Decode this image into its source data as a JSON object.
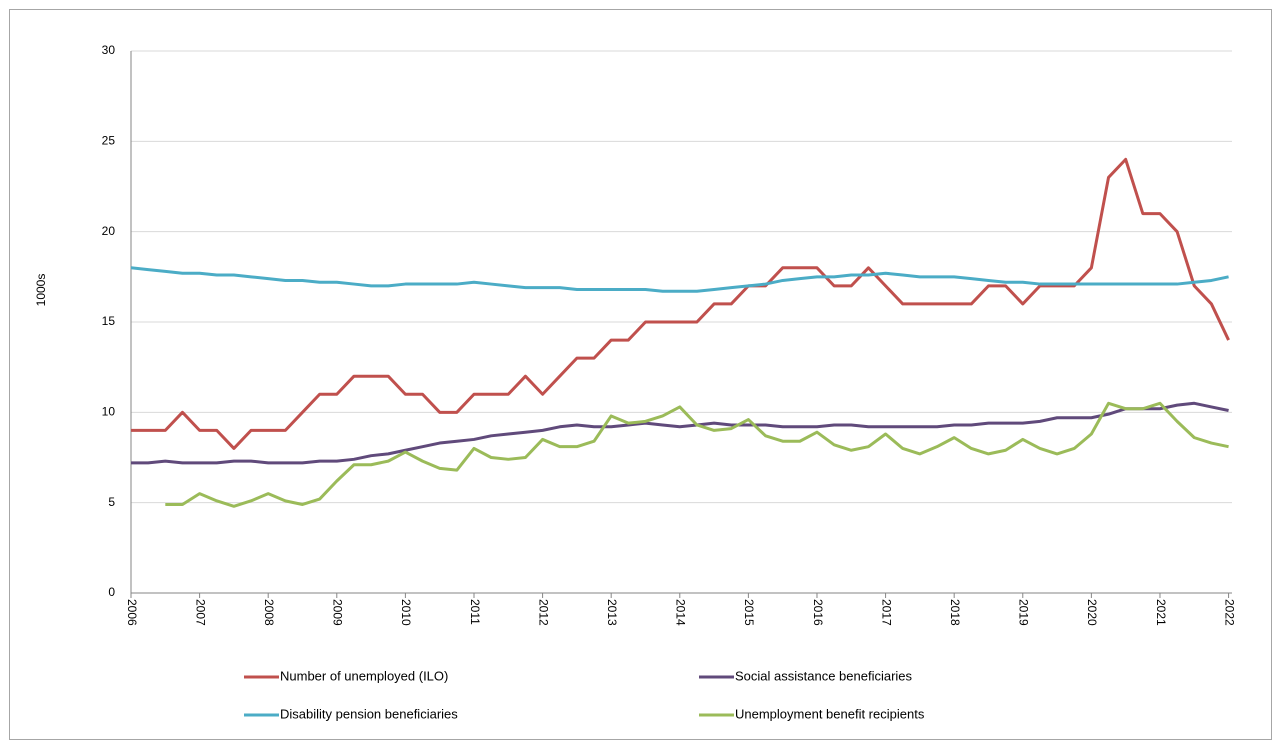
{
  "chart_data": {
    "type": "line",
    "y_label": "1000s",
    "x": [
      2006,
      2006.25,
      2006.5,
      2006.75,
      2007,
      2007.25,
      2007.5,
      2007.75,
      2008,
      2008.25,
      2008.5,
      2008.75,
      2009,
      2009.25,
      2009.5,
      2009.75,
      2010,
      2010.25,
      2010.5,
      2010.75,
      2011,
      2011.25,
      2011.5,
      2011.75,
      2012,
      2012.25,
      2012.5,
      2012.75,
      2013,
      2013.25,
      2013.5,
      2013.75,
      2014,
      2014.25,
      2014.5,
      2014.75,
      2015,
      2015.25,
      2015.5,
      2015.75,
      2016,
      2016.25,
      2016.5,
      2016.75,
      2017,
      2017.25,
      2017.5,
      2017.75,
      2018,
      2018.25,
      2018.5,
      2018.75,
      2019,
      2019.25,
      2019.5,
      2019.75,
      2020,
      2020.25,
      2020.5,
      2020.75,
      2021,
      2021.25,
      2021.5,
      2021.75,
      2022
    ],
    "series": [
      {
        "name": "Number of unemployed (ILO)",
        "color": "#c0504d",
        "values": [
          9,
          9,
          9,
          10,
          9,
          9,
          8,
          9,
          9,
          9,
          10,
          11,
          11,
          12,
          12,
          12,
          11,
          11,
          10,
          10,
          11,
          11,
          11,
          12,
          11,
          12,
          13,
          13,
          14,
          14,
          15,
          15,
          15,
          15,
          16,
          16,
          17,
          17,
          18,
          18,
          18,
          17,
          17,
          18,
          17,
          16,
          16,
          16,
          16,
          16,
          17,
          17,
          16,
          17,
          17,
          17,
          18,
          23,
          24,
          21,
          21,
          20,
          17,
          16,
          14
        ]
      },
      {
        "name": "Social assistance beneficiaries",
        "color": "#604a7b",
        "values": [
          7.2,
          7.2,
          7.3,
          7.2,
          7.2,
          7.2,
          7.3,
          7.3,
          7.2,
          7.2,
          7.2,
          7.3,
          7.3,
          7.4,
          7.6,
          7.7,
          7.9,
          8.1,
          8.3,
          8.4,
          8.5,
          8.7,
          8.8,
          8.9,
          9.0,
          9.2,
          9.3,
          9.2,
          9.2,
          9.3,
          9.4,
          9.3,
          9.2,
          9.3,
          9.4,
          9.3,
          9.3,
          9.3,
          9.2,
          9.2,
          9.2,
          9.3,
          9.3,
          9.2,
          9.2,
          9.2,
          9.2,
          9.2,
          9.3,
          9.3,
          9.4,
          9.4,
          9.4,
          9.5,
          9.7,
          9.7,
          9.7,
          9.9,
          10.2,
          10.2,
          10.2,
          10.4,
          10.5,
          10.3,
          10.1
        ]
      },
      {
        "name": "Disability pension beneficiaries",
        "color": "#4bacc6",
        "values": [
          18.0,
          17.9,
          17.8,
          17.7,
          17.7,
          17.6,
          17.6,
          17.5,
          17.4,
          17.3,
          17.3,
          17.2,
          17.2,
          17.1,
          17.0,
          17.0,
          17.1,
          17.1,
          17.1,
          17.1,
          17.2,
          17.1,
          17.0,
          16.9,
          16.9,
          16.9,
          16.8,
          16.8,
          16.8,
          16.8,
          16.8,
          16.7,
          16.7,
          16.7,
          16.8,
          16.9,
          17.0,
          17.1,
          17.3,
          17.4,
          17.5,
          17.5,
          17.6,
          17.6,
          17.7,
          17.6,
          17.5,
          17.5,
          17.5,
          17.4,
          17.3,
          17.2,
          17.2,
          17.1,
          17.1,
          17.1,
          17.1,
          17.1,
          17.1,
          17.1,
          17.1,
          17.1,
          17.2,
          17.3,
          17.5
        ]
      },
      {
        "name": "Unemployment benefit recipients",
        "color": "#9bbb59",
        "values": [
          null,
          null,
          4.9,
          4.9,
          5.5,
          5.1,
          4.8,
          5.1,
          5.5,
          5.1,
          4.9,
          5.2,
          6.2,
          7.1,
          7.1,
          7.3,
          7.8,
          7.3,
          6.9,
          6.8,
          8.0,
          7.5,
          7.4,
          7.5,
          8.5,
          8.1,
          8.1,
          8.4,
          9.8,
          9.4,
          9.5,
          9.8,
          10.3,
          9.3,
          9.0,
          9.1,
          9.6,
          8.7,
          8.4,
          8.4,
          8.9,
          8.2,
          7.9,
          8.1,
          8.8,
          8.0,
          7.7,
          8.1,
          8.6,
          8.0,
          7.7,
          7.9,
          8.5,
          8.0,
          7.7,
          8.0,
          8.8,
          10.5,
          10.2,
          10.2,
          10.5,
          9.5,
          8.6,
          8.3,
          8.1
        ]
      }
    ],
    "xlim": [
      2006,
      2022.05
    ],
    "xticks": [
      2006,
      2007,
      2008,
      2009,
      2010,
      2011,
      2012,
      2013,
      2014,
      2015,
      2016,
      2017,
      2018,
      2019,
      2020,
      2021,
      2022
    ],
    "ylim": [
      0,
      30
    ],
    "yticks": [
      0,
      5,
      10,
      15,
      20,
      25,
      30
    ],
    "grid": true
  }
}
